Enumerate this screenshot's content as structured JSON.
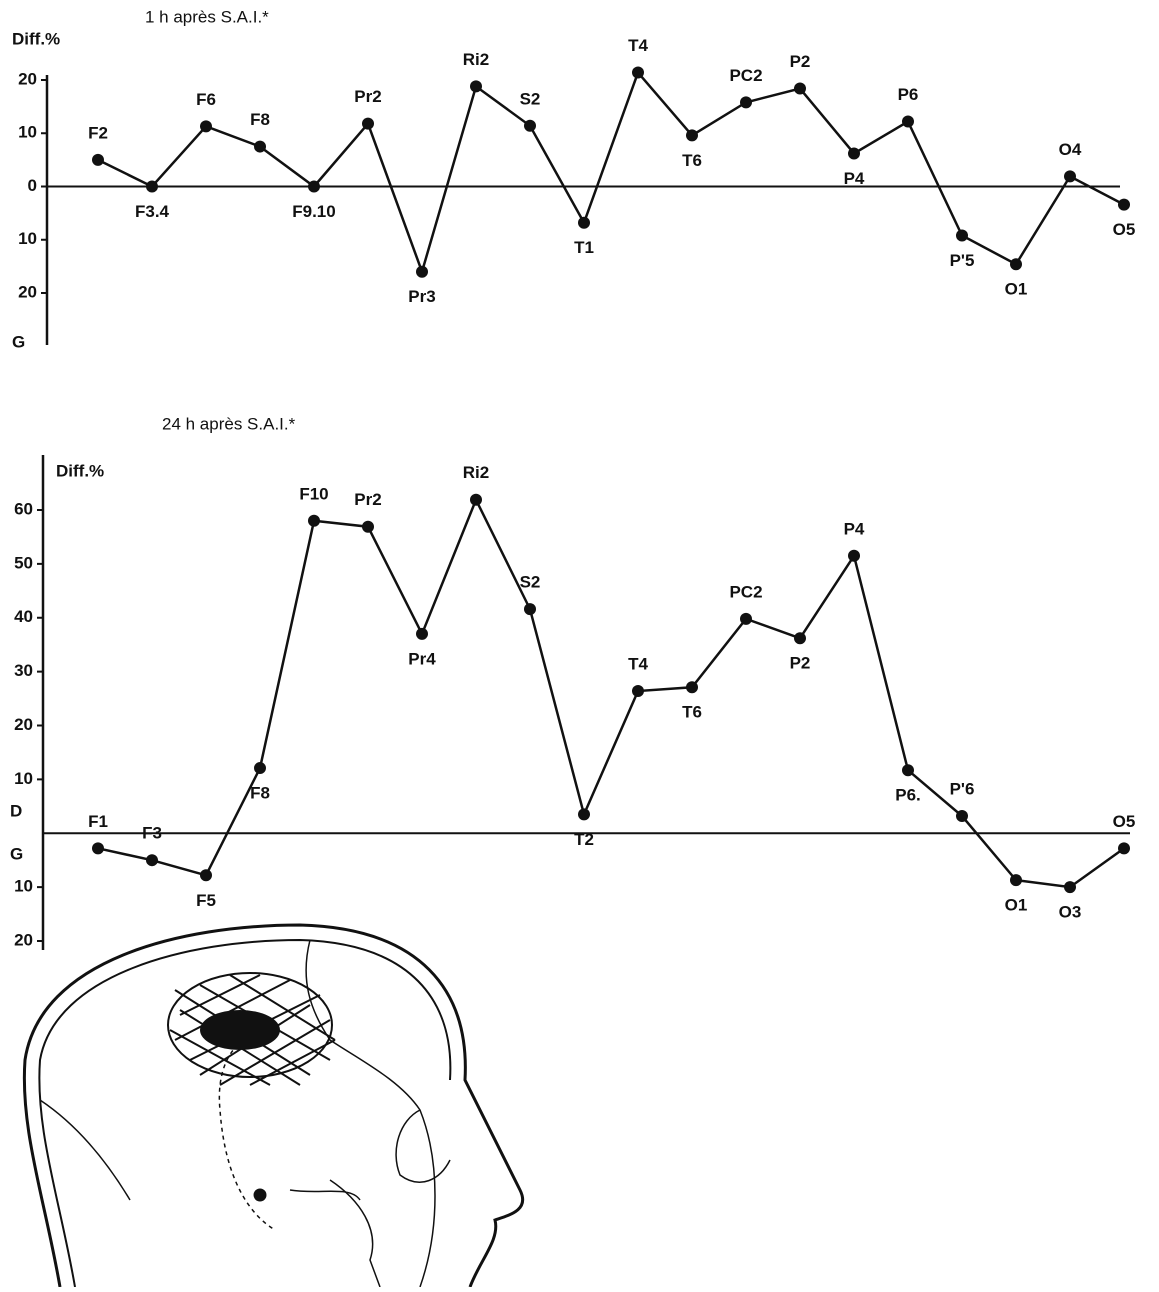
{
  "chart_data": [
    {
      "type": "line",
      "title": "1 h après S.A.I.*",
      "y_label": "Diff.%",
      "bottom_label": "G",
      "categories": [
        "F2",
        "F3.4",
        "F6",
        "F8",
        "F9.10",
        "Pr2",
        "Pr3",
        "Ri2",
        "S2",
        "T1",
        "T4",
        "T6",
        "PC2",
        "P2",
        "P4",
        "P6",
        "P'5",
        "O1",
        "O4",
        "O5"
      ],
      "values": [
        5,
        0,
        11.3,
        7.5,
        0,
        11.8,
        -16,
        18.8,
        11.4,
        -6.8,
        21.4,
        9.6,
        15.8,
        18.4,
        6.2,
        12.2,
        -9.2,
        -14.6,
        1.9,
        -3.4
      ],
      "color": "#111111",
      "ylim": [
        -20,
        20
      ],
      "yticks": [
        20,
        10,
        0,
        {
          "value": -10,
          "label": "10"
        },
        {
          "value": -20,
          "label": "20"
        }
      ]
    },
    {
      "type": "line",
      "title": "24 h après S.A.I.*",
      "y_label": "Diff.%",
      "upper_side_label": "D",
      "lower_side_label": "G",
      "categories": [
        "F1",
        "F3",
        "F5",
        "F8",
        "F10",
        "Pr2",
        "Pr4",
        "Ri2",
        "S2",
        "T2",
        "T4",
        "T6",
        "PC2",
        "P2",
        "P4",
        "P6.",
        "P'6",
        "O1",
        "O3",
        "O5"
      ],
      "values": [
        -2.8,
        -5,
        -7.8,
        12.1,
        58,
        56.9,
        37,
        61.9,
        41.6,
        3.5,
        26.4,
        27.1,
        39.8,
        36.2,
        51.5,
        11.7,
        3.2,
        -8.7,
        -10,
        -2.8
      ],
      "color": "#111111",
      "ylim": [
        -20,
        60
      ],
      "yticks": [
        60,
        50,
        40,
        30,
        20,
        10,
        {
          "value": -10,
          "label": "10"
        },
        {
          "value": -20,
          "label": "20"
        }
      ]
    }
  ]
}
